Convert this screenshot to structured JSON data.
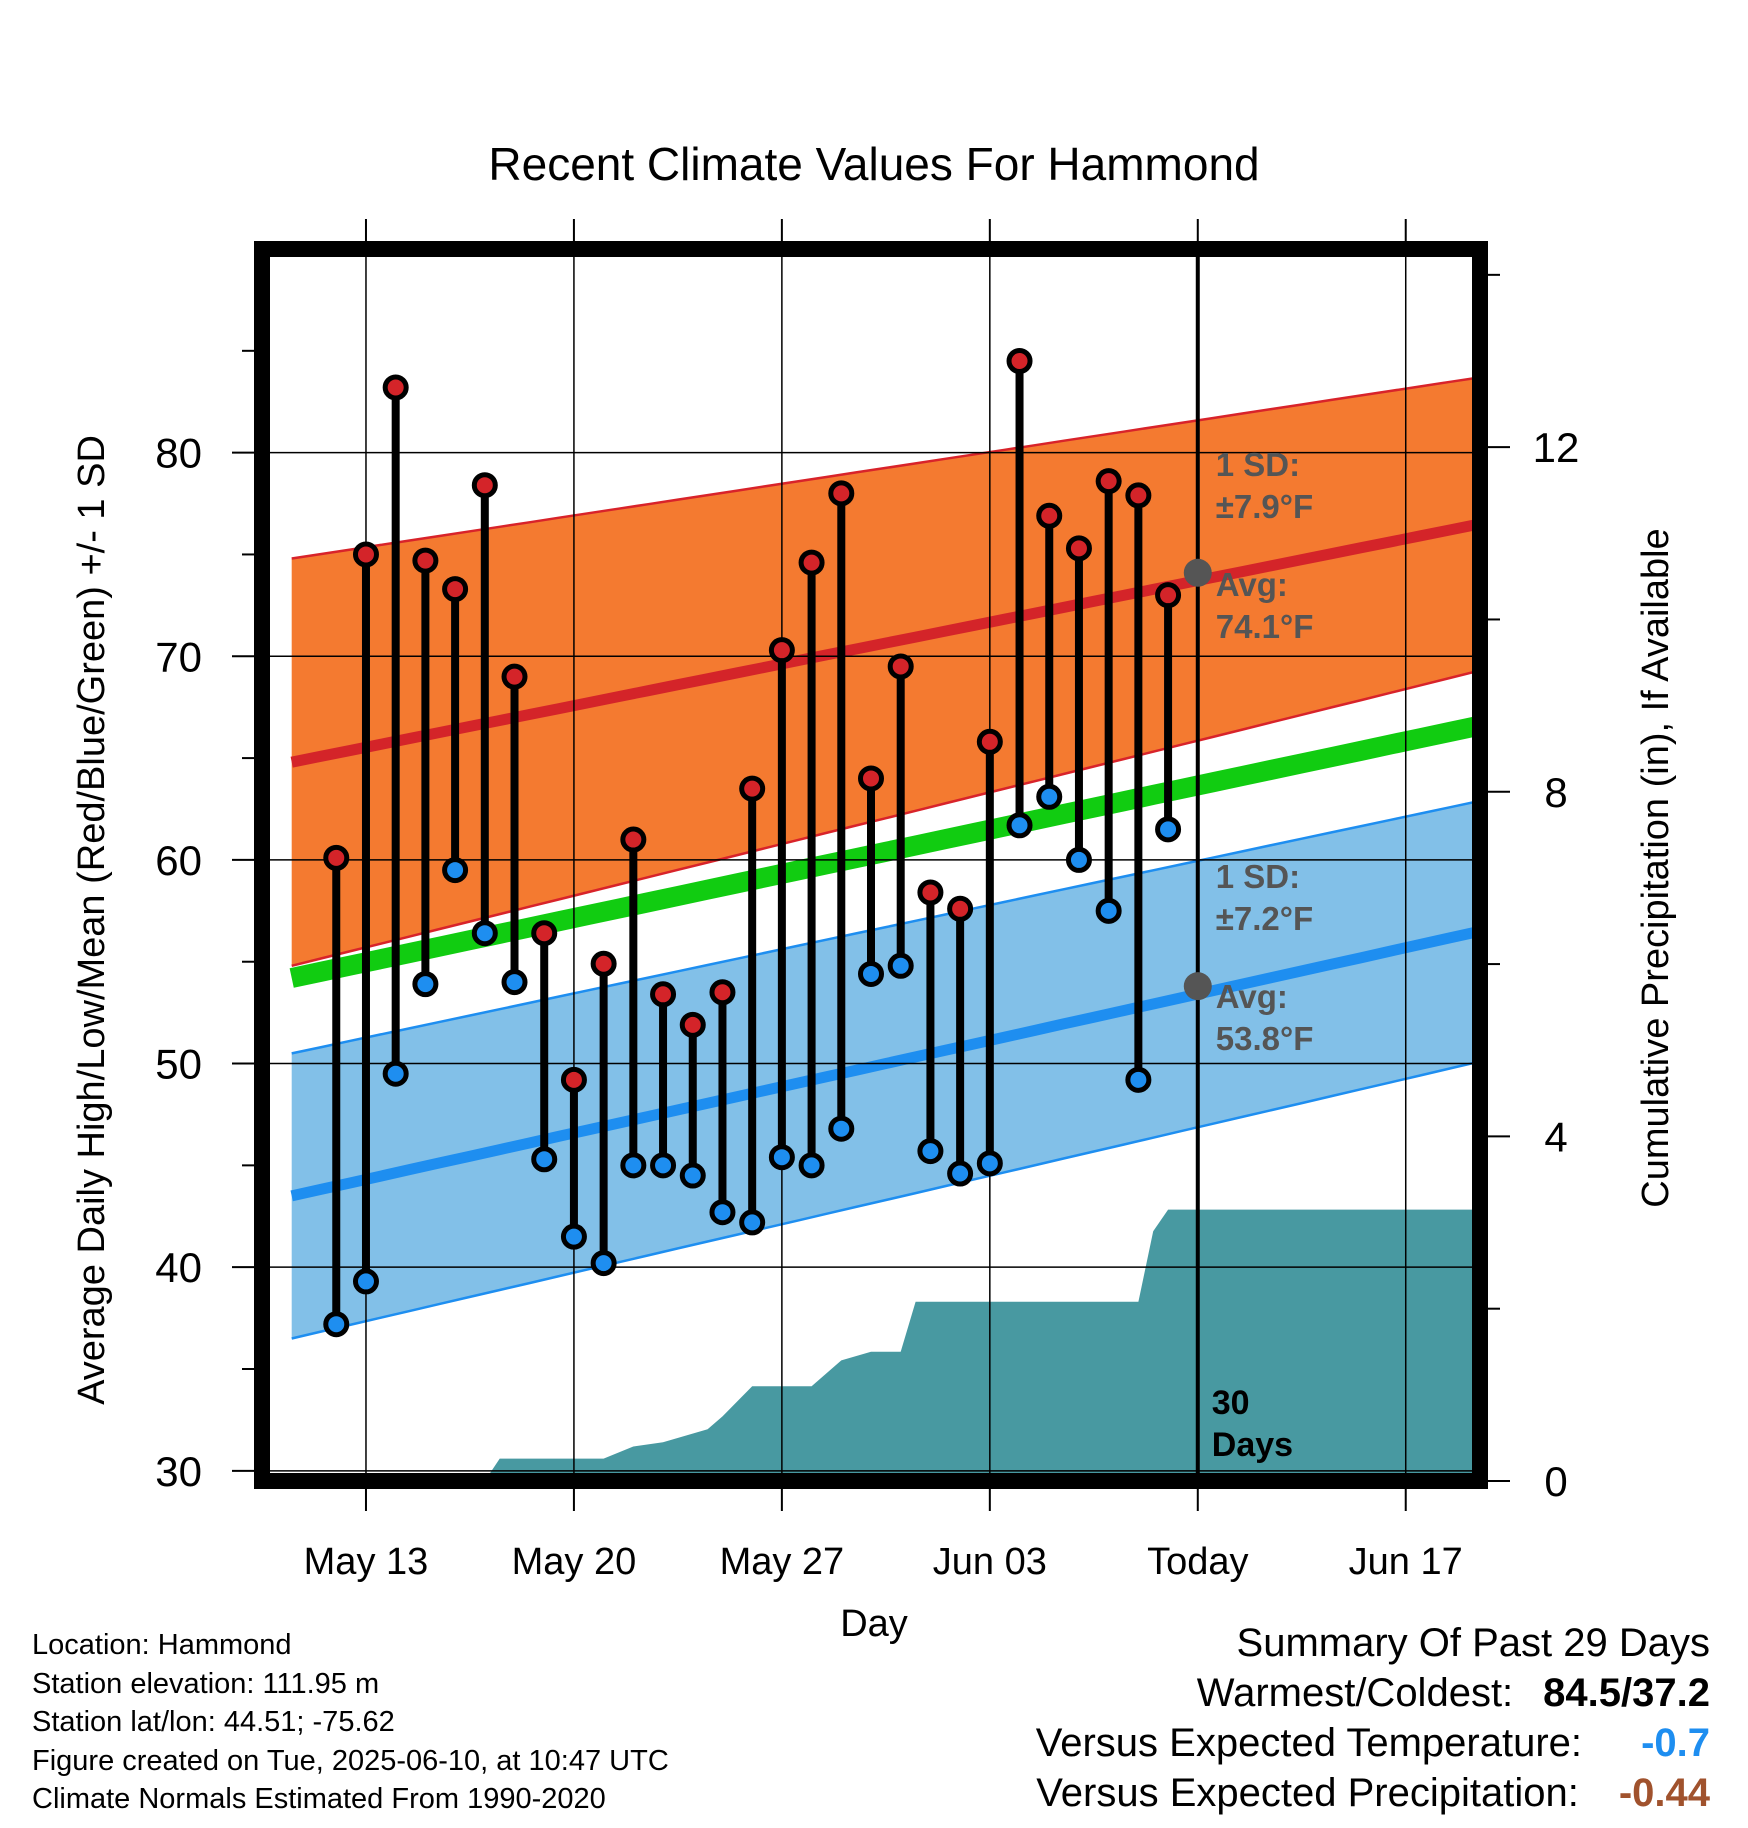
{
  "chart_data": {
    "type": "line",
    "title": "Recent Climate Values For Hammond",
    "xlabel": "Day",
    "ylabel": "Average Daily High/Low/Mean (Red/Blue/Green) +/- 1 SD",
    "ylabel_right": "Cumulative Precipitation (in), If Available",
    "x_tick_labels": [
      "May 13",
      "May 20",
      "May 27",
      "Jun 03",
      "Today",
      "Jun 17"
    ],
    "x_tick_days": [
      -28,
      -21,
      -14,
      -7,
      0,
      7
    ],
    "xlim_days": [
      -31.5,
      9.5
    ],
    "ylim": [
      29.5,
      90
    ],
    "y_ticks": [
      30,
      40,
      50,
      60,
      70,
      80
    ],
    "ylim_right": [
      0,
      14.3
    ],
    "y_ticks_right": [
      0,
      4,
      8,
      12
    ],
    "grid": true,
    "colors": {
      "high_band": "#f47a30",
      "high_band_edge": "#d8232a",
      "high_avg": "#d42429",
      "mean_line": "#11cc11",
      "low_band": "#82c0e8",
      "low_band_edge": "#1e8ef0",
      "low_avg": "#1e8ef0",
      "precip": "#4899a1",
      "marker_high": "#d42429",
      "marker_low": "#1e8ef0",
      "annotation": "#555555",
      "negative_temp": "#1e8ef0",
      "negative_precip": "#a0522d"
    },
    "normals": {
      "day_start": -30.5,
      "day_end": 9.5,
      "high_avg": [
        64.8,
        76.5
      ],
      "high_sd": [
        10.0,
        7.2
      ],
      "mean": [
        54.2,
        66.6
      ],
      "low_avg": [
        43.5,
        56.5
      ],
      "low_sd": [
        7.0,
        6.4
      ]
    },
    "observations": {
      "days": [
        -29,
        -28,
        -27,
        -26,
        -25,
        -24,
        -23,
        -22,
        -21,
        -20,
        -19,
        -18,
        -17,
        -16,
        -15,
        -14,
        -13,
        -12,
        -11,
        -10,
        -9,
        -8,
        -7,
        -6,
        -5,
        -4,
        -3,
        -2,
        -1
      ],
      "high": [
        60.1,
        75.0,
        83.2,
        74.7,
        73.3,
        78.4,
        69.0,
        56.4,
        49.2,
        54.9,
        61.0,
        53.4,
        51.9,
        53.5,
        63.5,
        70.3,
        74.6,
        78.0,
        64.0,
        69.5,
        58.4,
        57.6,
        65.8,
        84.5,
        76.9,
        75.3,
        78.6,
        77.9,
        73.0
      ],
      "low": [
        37.2,
        39.3,
        49.5,
        53.9,
        59.5,
        56.4,
        54.0,
        45.3,
        41.5,
        40.2,
        45.0,
        45.0,
        44.5,
        42.7,
        42.2,
        45.4,
        45.0,
        46.8,
        54.4,
        54.8,
        45.7,
        44.6,
        45.1,
        61.7,
        63.1,
        60.0,
        57.5,
        49.2,
        61.5
      ]
    },
    "precipitation": {
      "days": [
        -30.5,
        -24,
        -23.5,
        -20,
        -19,
        -18,
        -16.5,
        -16,
        -15,
        -14.5,
        -13,
        -12,
        -11,
        -10,
        -9.5,
        -9,
        -8,
        -7,
        -6,
        -5,
        -4,
        -3,
        -2,
        -1.5,
        -1,
        0,
        9.5
      ],
      "cumulative_in": [
        0,
        0,
        0.26,
        0.26,
        0.4,
        0.45,
        0.6,
        0.75,
        1.1,
        1.1,
        1.1,
        1.4,
        1.5,
        1.5,
        2.08,
        2.08,
        2.08,
        2.08,
        2.08,
        2.08,
        2.08,
        2.08,
        2.08,
        2.9,
        3.15,
        3.15,
        3.15
      ]
    },
    "annotations": {
      "high_sd_label": "1 SD:",
      "high_sd_value": "±7.9°F",
      "high_avg_label": "Avg:",
      "high_avg_value": "74.1°F",
      "high_avg_today": 74.1,
      "low_sd_label": "1 SD:",
      "low_sd_value": "±7.2°F",
      "low_avg_label": "Avg:",
      "low_avg_value": "53.8°F",
      "low_avg_today": 53.8,
      "period_line1": "30",
      "period_line2": "Days"
    }
  },
  "footer": {
    "location": "Location: Hammond",
    "elevation": "Station elevation: 111.95 m",
    "latlon": "Station lat/lon: 44.51; -75.62",
    "created": "Figure created on Tue, 2025-06-10, at 10:47 UTC",
    "normals": "Climate Normals Estimated From 1990-2020"
  },
  "summary": {
    "title": "Summary Of Past 29 Days",
    "warmest_coldest_label": "Warmest/Coldest:",
    "warmest_coldest_value": "84.5/37.2",
    "temp_label": "Versus Expected Temperature:",
    "temp_value": "-0.7",
    "precip_label": "Versus Expected Precipitation:",
    "precip_value": "-0.44"
  }
}
